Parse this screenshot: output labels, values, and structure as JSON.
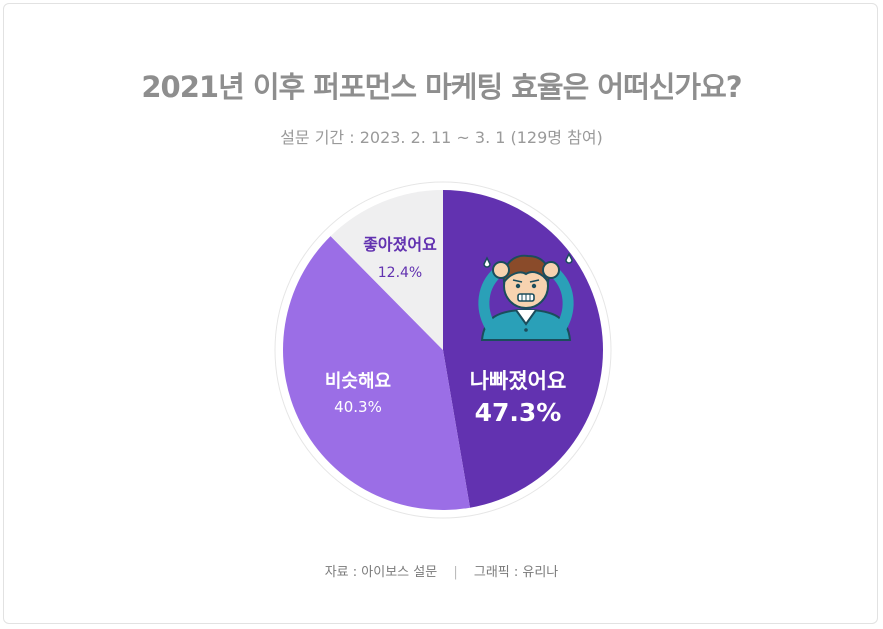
{
  "chart_data": {
    "type": "pie",
    "title": "2021년 이후 퍼포먼스 마케팅 효율은 어떠신가요?",
    "subtitle": "설문 기간 :  2023. 2. 11 ~ 3. 1 (129명 참여)",
    "categories": [
      "나빠졌어요",
      "비슷해요",
      "좋아졌어요"
    ],
    "values": [
      47.3,
      40.3,
      12.4
    ],
    "value_labels": [
      "47.3%",
      "40.3%",
      "12.4%"
    ],
    "colors": [
      "#6232b0",
      "#9b6ee6",
      "#efeff0"
    ],
    "label_colors": [
      "#ffffff",
      "#ffffff",
      "#6232b0"
    ],
    "start_angle_deg": 0,
    "direction": "clockwise",
    "legend": "none"
  },
  "footer": {
    "source": "자료 : 아이보스 설문",
    "separator": "|",
    "graphic": "그래픽 : 유리나"
  },
  "colors": {
    "title": "#8e8e8e",
    "border": "#e2e2e2"
  },
  "illustration": {
    "icon": "stressed-person-icon"
  }
}
